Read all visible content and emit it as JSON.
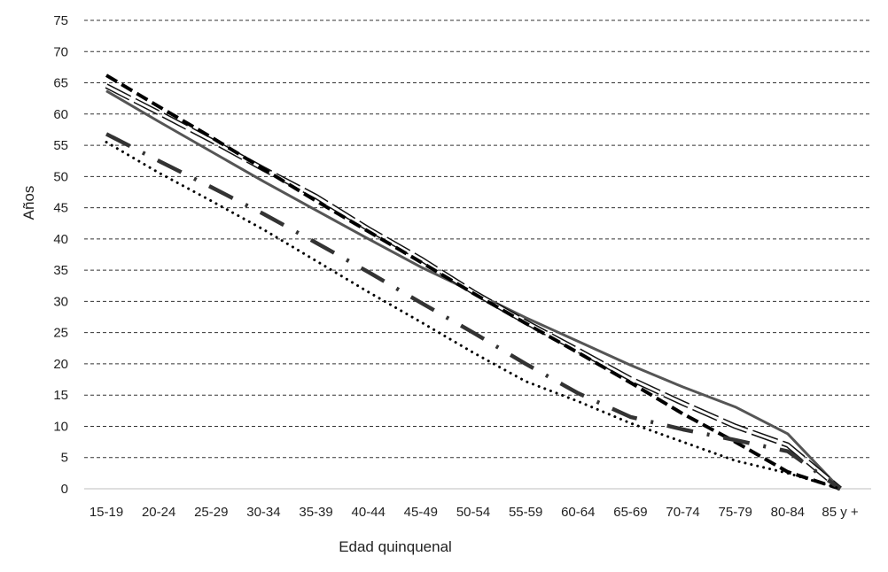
{
  "chart_data": {
    "type": "line",
    "title": "",
    "xlabel": "Edad quinquenal",
    "ylabel": "Años",
    "categories": [
      "15-19",
      "20-24",
      "25-29",
      "30-34",
      "35-39",
      "40-44",
      "45-49",
      "50-54",
      "55-59",
      "60-64",
      "65-69",
      "70-74",
      "75-79",
      "80-84",
      "85 y +"
    ],
    "ylim": [
      0,
      75
    ],
    "ytick_step": 5,
    "grid": "horizontal dashed",
    "legend": "none",
    "series": [
      {
        "style": "solid",
        "color": "#555555",
        "values": [
          63.7,
          58.8,
          54.0,
          49.2,
          44.6,
          40.0,
          35.5,
          31.5,
          27.4,
          23.6,
          19.8,
          16.3,
          13.1,
          8.8,
          0
        ]
      },
      {
        "style": "double",
        "color": "#111111",
        "values": [
          64.5,
          60.2,
          55.8,
          51.2,
          46.8,
          41.6,
          36.8,
          31.5,
          26.7,
          22.2,
          17.6,
          13.7,
          10.0,
          7.0,
          0
        ]
      },
      {
        "style": "bold-dash",
        "color": "#000000",
        "values": [
          66.2,
          61.2,
          56.3,
          51.2,
          46.1,
          41.2,
          36.3,
          31.3,
          26.5,
          21.8,
          17.0,
          12.0,
          7.5,
          2.7,
          0
        ]
      },
      {
        "style": "long-dash-dot",
        "color": "#333333",
        "values": [
          56.8,
          52.5,
          48.3,
          44.0,
          39.4,
          34.7,
          29.8,
          25.0,
          20.0,
          15.3,
          11.5,
          9.5,
          7.8,
          6.0,
          0
        ]
      },
      {
        "style": "dotted",
        "color": "#000000",
        "values": [
          55.5,
          50.6,
          46.1,
          41.5,
          36.5,
          31.5,
          26.7,
          21.8,
          17.2,
          14.0,
          10.5,
          7.5,
          4.5,
          2.5,
          0
        ]
      }
    ]
  }
}
